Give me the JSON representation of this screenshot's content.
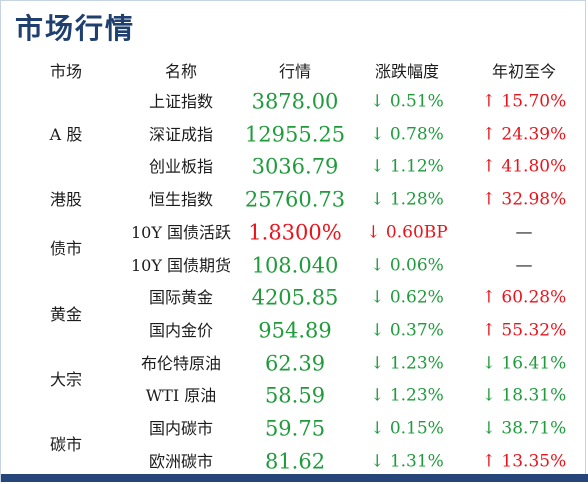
{
  "title": "市场行情",
  "headers": {
    "market": "市场",
    "name": "名称",
    "quote": "行情",
    "change": "涨跌幅度",
    "ytd": "年初至今"
  },
  "colors": {
    "title": "#1f3f6e",
    "up": "#e8141b",
    "down": "#1f9b3c",
    "rule": "#26467a"
  },
  "groups": [
    {
      "label": "A 股",
      "rows": [
        0,
        2
      ]
    },
    {
      "label": "港股",
      "rows": [
        3,
        3
      ]
    },
    {
      "label": "债市",
      "rows": [
        4,
        5
      ]
    },
    {
      "label": "黄金",
      "rows": [
        6,
        7
      ]
    },
    {
      "label": "大宗",
      "rows": [
        8,
        9
      ]
    },
    {
      "label": "碳市",
      "rows": [
        10,
        11
      ]
    }
  ],
  "rows": [
    {
      "name": "上证指数",
      "quote": "3878.00",
      "quote_dir": "down",
      "change": "↓ 0.51%",
      "change_dir": "down",
      "ytd": "↑ 15.70%",
      "ytd_dir": "up"
    },
    {
      "name": "深证成指",
      "quote": "12955.25",
      "quote_dir": "down",
      "change": "↓ 0.78%",
      "change_dir": "down",
      "ytd": "↑ 24.39%",
      "ytd_dir": "up"
    },
    {
      "name": "创业板指",
      "quote": "3036.79",
      "quote_dir": "down",
      "change": "↓ 1.12%",
      "change_dir": "down",
      "ytd": "↑ 41.80%",
      "ytd_dir": "up"
    },
    {
      "name": "恒生指数",
      "quote": "25760.73",
      "quote_dir": "down",
      "change": "↓ 1.28%",
      "change_dir": "down",
      "ytd": "↑ 32.98%",
      "ytd_dir": "up"
    },
    {
      "name": "10Y 国债活跃",
      "quote": "1.8300%",
      "quote_dir": "up",
      "change": "↓ 0.60BP",
      "change_dir": "up",
      "ytd": "—",
      "ytd_dir": "none"
    },
    {
      "name": "10Y 国债期货",
      "quote": "108.040",
      "quote_dir": "down",
      "change": "↓ 0.06%",
      "change_dir": "down",
      "ytd": "—",
      "ytd_dir": "none"
    },
    {
      "name": "国际黄金",
      "quote": "4205.85",
      "quote_dir": "down",
      "change": "↓ 0.62%",
      "change_dir": "down",
      "ytd": "↑ 60.28%",
      "ytd_dir": "up"
    },
    {
      "name": "国内金价",
      "quote": "954.89",
      "quote_dir": "down",
      "change": "↓ 0.37%",
      "change_dir": "down",
      "ytd": "↑ 55.32%",
      "ytd_dir": "up"
    },
    {
      "name": "布伦特原油",
      "quote": "62.39",
      "quote_dir": "down",
      "change": "↓ 1.23%",
      "change_dir": "down",
      "ytd": "↓ 16.41%",
      "ytd_dir": "down"
    },
    {
      "name": "WTI 原油",
      "quote": "58.59",
      "quote_dir": "down",
      "change": "↓ 1.23%",
      "change_dir": "down",
      "ytd": "↓ 18.31%",
      "ytd_dir": "down"
    },
    {
      "name": "国内碳市",
      "quote": "59.75",
      "quote_dir": "down",
      "change": "↓ 0.15%",
      "change_dir": "down",
      "ytd": "↓ 38.71%",
      "ytd_dir": "down"
    },
    {
      "name": "欧洲碳市",
      "quote": "81.62",
      "quote_dir": "down",
      "change": "↓ 1.31%",
      "change_dir": "down",
      "ytd": "↑ 13.35%",
      "ytd_dir": "up"
    }
  ]
}
